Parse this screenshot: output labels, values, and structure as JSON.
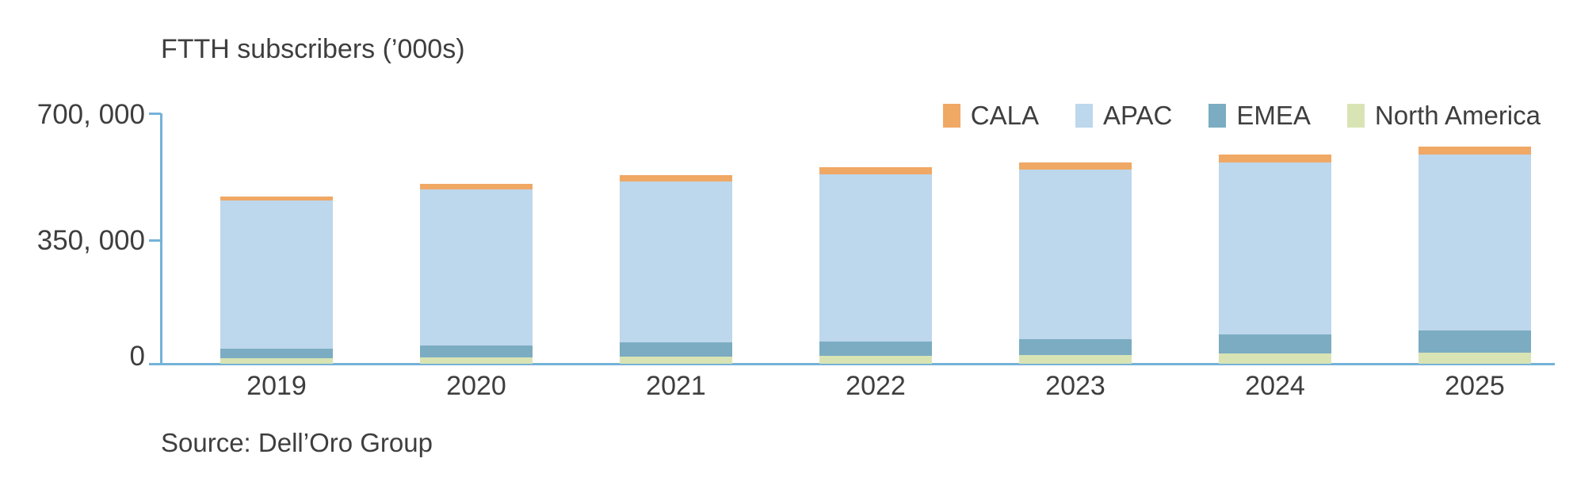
{
  "chart": {
    "title": "FTTH subscribers (’000s)",
    "source": "Source: Dell’Oro Group",
    "y_axis": {
      "tick_labels": [
        "700, 000",
        "350, 000",
        "0"
      ]
    },
    "legend": [
      {
        "label": "CALA",
        "color": "#f0a865"
      },
      {
        "label": "APAC",
        "color": "#bdd7ec"
      },
      {
        "label": "EMEA",
        "color": "#7bacc2"
      },
      {
        "label": "North America",
        "color": "#d9e4b4"
      }
    ],
    "colors": {
      "axis": "#74b2d8",
      "text": "#3e3e3e"
    }
  },
  "chart_data": {
    "type": "bar",
    "stacked": true,
    "title": "FTTH subscribers (’000s)",
    "xlabel": "",
    "ylabel": "FTTH subscribers (’000s)",
    "categories": [
      "2019",
      "2020",
      "2021",
      "2022",
      "2023",
      "2024",
      "2025"
    ],
    "series": [
      {
        "name": "North America",
        "color": "#d9e4b4",
        "values": [
          15000,
          17000,
          21000,
          23000,
          25000,
          28000,
          30000
        ]
      },
      {
        "name": "EMEA",
        "color": "#7bacc2",
        "values": [
          27000,
          33000,
          38000,
          38000,
          44000,
          53000,
          62000
        ]
      },
      {
        "name": "APAC",
        "color": "#bdd7ec",
        "values": [
          412000,
          435000,
          450000,
          466000,
          473000,
          481000,
          492000
        ]
      },
      {
        "name": "CALA",
        "color": "#f0a865",
        "values": [
          12000,
          16000,
          17000,
          20000,
          20000,
          20000,
          21000
        ]
      }
    ],
    "stack_order_bottom_to_top": [
      "North America",
      "EMEA",
      "APAC",
      "CALA"
    ],
    "totals": [
      466000,
      501000,
      526000,
      547000,
      562000,
      582000,
      605000
    ],
    "ylim": [
      0,
      700000
    ],
    "y_ticks": [
      0,
      350000,
      700000
    ],
    "grid": false,
    "legend_position": "top-right",
    "source": "Dell’Oro Group"
  }
}
